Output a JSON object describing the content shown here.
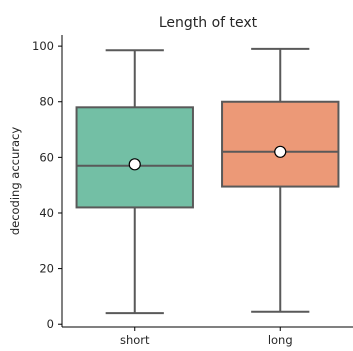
{
  "chart_data": {
    "type": "box",
    "title": "Length of text",
    "xlabel": "",
    "ylabel": "decoding accuracy",
    "categories": [
      "short",
      "long"
    ],
    "ylim": [
      -1,
      104
    ],
    "yticks": [
      0,
      20,
      40,
      60,
      80,
      100
    ],
    "boxes": [
      {
        "category": "short",
        "whisker_low": 4,
        "q1": 42,
        "median": 57,
        "q3": 78,
        "whisker_high": 98.5,
        "mean": 57.5,
        "color": "#73bfa5"
      },
      {
        "category": "long",
        "whisker_low": 4.5,
        "q1": 49.5,
        "median": 62,
        "q3": 80,
        "whisker_high": 99,
        "mean": 62,
        "color": "#ec9977"
      }
    ],
    "grid": false,
    "line_color": "#595959"
  }
}
